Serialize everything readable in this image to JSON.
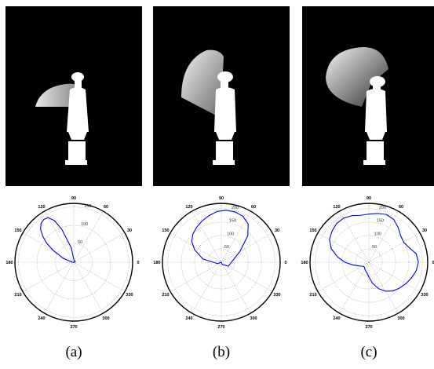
{
  "figure": {
    "panels": [
      {
        "id": "a",
        "caption": "(a)"
      },
      {
        "id": "b",
        "caption": "(b)"
      },
      {
        "id": "c",
        "caption": "(c)"
      }
    ]
  },
  "chart_data": [
    {
      "type": "line",
      "subtype": "polar",
      "angle_labels": [
        "90",
        "120",
        "150",
        "180",
        "210",
        "240",
        "270",
        "300",
        "330",
        "0",
        "30",
        "60"
      ],
      "radial_ticks": [
        "50",
        "100",
        "150"
      ],
      "rlim": [
        0,
        160
      ],
      "grid": true,
      "series_color": "#0000ff",
      "theta_deg": [
        90,
        100,
        110,
        115,
        120,
        125,
        130,
        135,
        140,
        145,
        150,
        160,
        180,
        270,
        360
      ],
      "r": [
        8,
        40,
        95,
        125,
        140,
        142,
        138,
        128,
        110,
        90,
        65,
        30,
        4,
        0,
        4
      ]
    },
    {
      "type": "line",
      "subtype": "polar",
      "angle_labels": [
        "90",
        "120",
        "150",
        "180",
        "210",
        "240",
        "270",
        "300",
        "330",
        "0",
        "30",
        "60"
      ],
      "radial_ticks": [
        "50",
        "100",
        "150",
        "200"
      ],
      "rlim": [
        0,
        220
      ],
      "grid": true,
      "series_color": "#0000ff",
      "theta_deg": [
        30,
        45,
        55,
        65,
        75,
        85,
        95,
        105,
        115,
        125,
        135,
        145,
        155,
        170,
        200,
        260,
        280,
        300,
        330
      ],
      "r": [
        80,
        140,
        175,
        190,
        195,
        195,
        190,
        180,
        170,
        160,
        150,
        135,
        110,
        70,
        15,
        0,
        5,
        10,
        30
      ]
    },
    {
      "type": "line",
      "subtype": "polar",
      "angle_labels": [
        "90",
        "120",
        "150",
        "180",
        "210",
        "240",
        "270",
        "300",
        "330",
        "0",
        "30",
        "60"
      ],
      "radial_ticks": [
        "50",
        "100",
        "150",
        "200"
      ],
      "rlim": [
        0,
        220
      ],
      "grid": true,
      "series_color": "#0000ff",
      "theta_deg": [
        0,
        10,
        20,
        30,
        40,
        50,
        60,
        70,
        80,
        90,
        100,
        110,
        120,
        130,
        140,
        150,
        160,
        170,
        180,
        190,
        200,
        210,
        220,
        230,
        240,
        250,
        260,
        270,
        280,
        290,
        300,
        310,
        320,
        330,
        340,
        350
      ],
      "r": [
        185,
        180,
        160,
        150,
        155,
        170,
        185,
        190,
        185,
        180,
        178,
        185,
        190,
        188,
        180,
        170,
        150,
        120,
        90,
        60,
        40,
        30,
        25,
        25,
        30,
        35,
        40,
        55,
        80,
        105,
        125,
        140,
        150,
        160,
        170,
        180
      ]
    }
  ]
}
